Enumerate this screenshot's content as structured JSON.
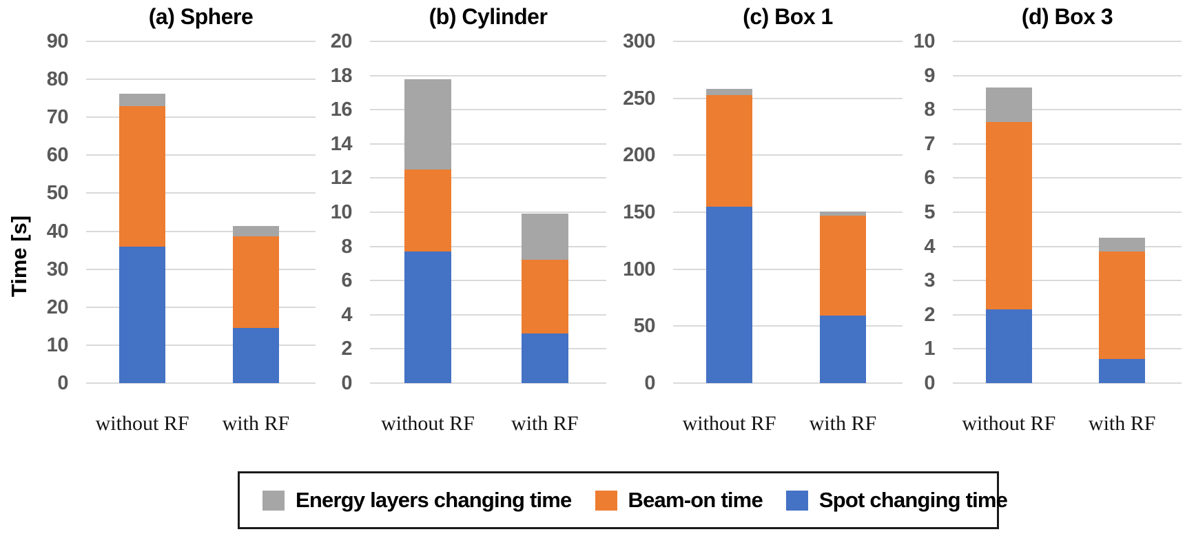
{
  "ylabel": "Time [s]",
  "legend": {
    "items": [
      {
        "label": "Energy layers changing time",
        "color": "#A6A6A6"
      },
      {
        "label": "Beam-on time",
        "color": "#ED7D31"
      },
      {
        "label": "Spot changing time",
        "color": "#4472C4"
      }
    ]
  },
  "chart_data": [
    {
      "type": "bar",
      "stacked": true,
      "title": "(a) Sphere",
      "categories": [
        "without RF",
        "with RF"
      ],
      "series": [
        {
          "name": "Spot changing time",
          "color": "#4472C4",
          "values": [
            36,
            14.5
          ]
        },
        {
          "name": "Beam-on time",
          "color": "#ED7D31",
          "values": [
            37,
            24.2
          ]
        },
        {
          "name": "Energy layers changing time",
          "color": "#A6A6A6",
          "values": [
            3.3,
            2.7
          ]
        }
      ],
      "stack_totals": [
        76.3,
        41.4
      ],
      "ylim": [
        0,
        90
      ],
      "ytick_step": 10,
      "grid": true,
      "legend_position": "bottom"
    },
    {
      "type": "bar",
      "stacked": true,
      "title": "(b) Cylinder",
      "categories": [
        "without RF",
        "with RF"
      ],
      "series": [
        {
          "name": "Spot changing time",
          "color": "#4472C4",
          "values": [
            7.7,
            2.9
          ]
        },
        {
          "name": "Beam-on time",
          "color": "#ED7D31",
          "values": [
            4.8,
            4.3
          ]
        },
        {
          "name": "Energy layers changing time",
          "color": "#A6A6A6",
          "values": [
            5.3,
            2.7
          ]
        }
      ],
      "stack_totals": [
        17.8,
        9.9
      ],
      "ylim": [
        0,
        20
      ],
      "ytick_step": 2,
      "grid": true,
      "legend_position": "bottom"
    },
    {
      "type": "bar",
      "stacked": true,
      "title": "(c) Box 1",
      "categories": [
        "without RF",
        "with RF"
      ],
      "series": [
        {
          "name": "Spot changing time",
          "color": "#4472C4",
          "values": [
            155,
            59
          ]
        },
        {
          "name": "Beam-on time",
          "color": "#ED7D31",
          "values": [
            98,
            88
          ]
        },
        {
          "name": "Energy layers changing time",
          "color": "#A6A6A6",
          "values": [
            5.5,
            3.5
          ]
        }
      ],
      "stack_totals": [
        258.5,
        150.5
      ],
      "ylim": [
        0,
        300
      ],
      "ytick_step": 50,
      "grid": true,
      "legend_position": "bottom"
    },
    {
      "type": "bar",
      "stacked": true,
      "title": "(d) Box 3",
      "categories": [
        "without RF",
        "with RF"
      ],
      "series": [
        {
          "name": "Spot changing time",
          "color": "#4472C4",
          "values": [
            2.15,
            0.7
          ]
        },
        {
          "name": "Beam-on time",
          "color": "#ED7D31",
          "values": [
            5.5,
            3.15
          ]
        },
        {
          "name": "Energy layers changing time",
          "color": "#A6A6A6",
          "values": [
            1.0,
            0.4
          ]
        }
      ],
      "stack_totals": [
        8.65,
        4.25
      ],
      "ylim": [
        0,
        10
      ],
      "ytick_step": 1,
      "grid": true,
      "legend_position": "bottom"
    }
  ]
}
